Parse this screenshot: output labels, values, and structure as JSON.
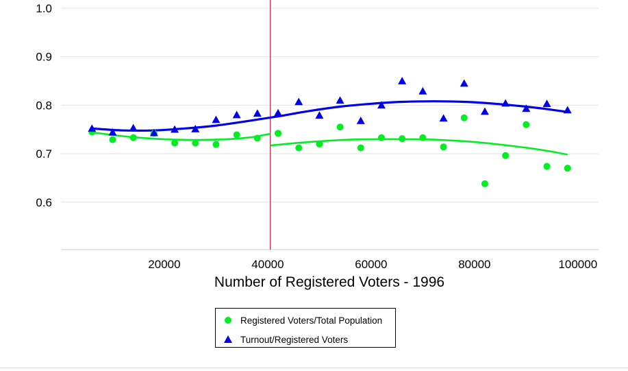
{
  "chart_data": {
    "type": "scatter",
    "xlabel": "Number of Registered Voters - 1996",
    "ylabel": "",
    "xlim": [
      0,
      104000
    ],
    "ylim": [
      0.5,
      1.0
    ],
    "x_ticks": [
      20000,
      40000,
      60000,
      80000,
      100000
    ],
    "x_tick_labels": [
      "20000",
      "40000",
      "60000",
      "80000",
      "100000"
    ],
    "y_ticks": [
      0.6,
      0.7,
      0.8,
      0.9,
      1.0
    ],
    "y_tick_labels": [
      "0.6",
      "0.7",
      "0.8",
      "0.9",
      "1.0"
    ],
    "grid": "horizontal",
    "threshold_line": {
      "x": 40500,
      "color": "#b5174d"
    },
    "legend_position": "bottom",
    "series": [
      {
        "name": "Registered Voters/Total Population",
        "color": "#00ee22",
        "marker": "circle",
        "x": [
          6000,
          10000,
          14000,
          18000,
          22000,
          26000,
          30000,
          34000,
          38000,
          42000,
          46000,
          50000,
          54000,
          58000,
          62000,
          66000,
          70000,
          74000,
          78000,
          82000,
          86000,
          90000,
          94000,
          98000
        ],
        "y": [
          0.745,
          0.729,
          0.733,
          0.742,
          0.722,
          0.722,
          0.719,
          0.739,
          0.732,
          0.742,
          0.712,
          0.72,
          0.755,
          0.712,
          0.733,
          0.731,
          0.733,
          0.714,
          0.774,
          0.638,
          0.696,
          0.76,
          0.674,
          0.67
        ],
        "trend_left": {
          "x": [
            6000,
            14000,
            22000,
            30000,
            36000,
            40500
          ],
          "y": [
            0.744,
            0.734,
            0.729,
            0.729,
            0.733,
            0.741
          ]
        },
        "trend_right": {
          "x": [
            40500,
            48000,
            56000,
            64000,
            72000,
            80000,
            88000,
            94000,
            98000
          ],
          "y": [
            0.717,
            0.724,
            0.729,
            0.73,
            0.729,
            0.724,
            0.715,
            0.706,
            0.698
          ]
        }
      },
      {
        "name": "Turnout/Registered Voters",
        "color": "#0000ee",
        "marker": "triangle",
        "x": [
          6000,
          10000,
          14000,
          18000,
          22000,
          26000,
          30000,
          34000,
          38000,
          42000,
          46000,
          50000,
          54000,
          58000,
          62000,
          66000,
          70000,
          74000,
          78000,
          82000,
          86000,
          90000,
          94000,
          98000
        ],
        "y": [
          0.752,
          0.744,
          0.753,
          0.743,
          0.75,
          0.751,
          0.77,
          0.78,
          0.783,
          0.784,
          0.807,
          0.779,
          0.81,
          0.768,
          0.8,
          0.85,
          0.829,
          0.773,
          0.845,
          0.787,
          0.804,
          0.793,
          0.803,
          0.79
        ],
        "trend": {
          "x": [
            6000,
            12000,
            18000,
            24000,
            30000,
            36000,
            42000,
            48000,
            54000,
            60000,
            66000,
            72000,
            78000,
            84000,
            90000,
            94000,
            98000
          ],
          "y": [
            0.752,
            0.748,
            0.748,
            0.752,
            0.758,
            0.767,
            0.777,
            0.788,
            0.797,
            0.803,
            0.807,
            0.808,
            0.807,
            0.803,
            0.797,
            0.792,
            0.786
          ]
        }
      }
    ]
  }
}
